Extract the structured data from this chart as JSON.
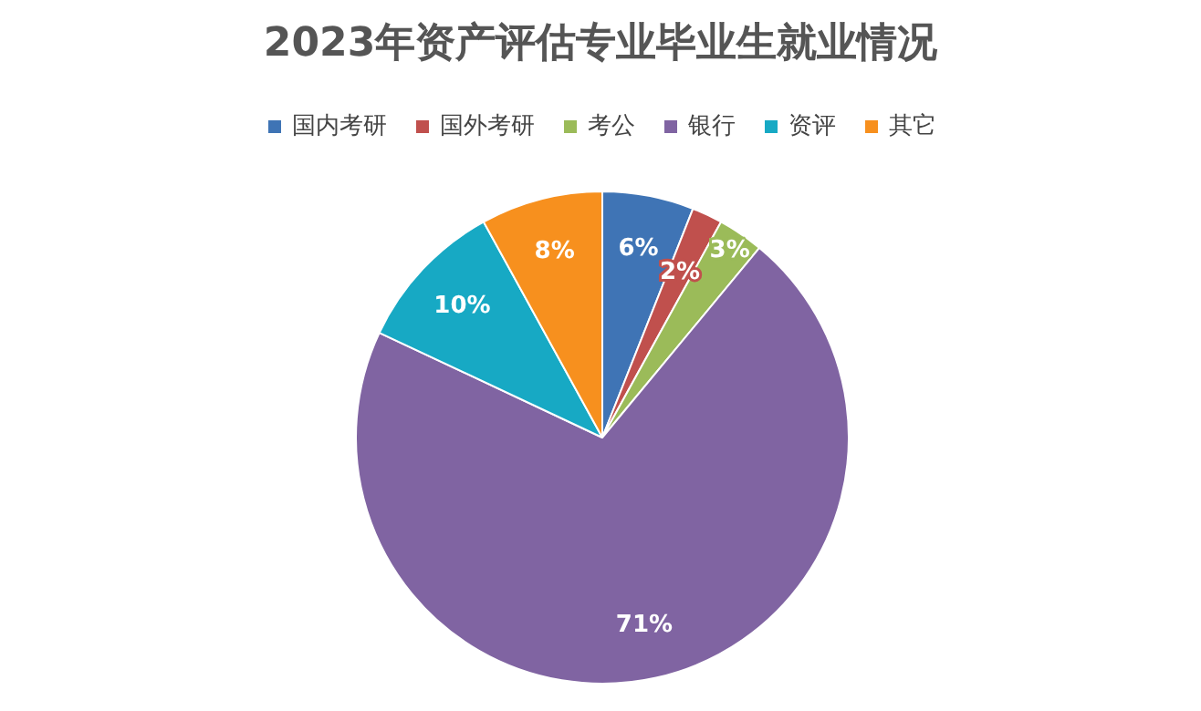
{
  "chart_data": {
    "type": "pie",
    "title": "2023年资产评估专业毕业生就业情况",
    "categories": [
      "国内考研",
      "国外考研",
      "考公",
      "银行",
      "资评",
      "其它"
    ],
    "values": [
      6,
      2,
      3,
      71,
      10,
      8
    ],
    "colors": [
      "#3f74b5",
      "#c0504d",
      "#9bbb59",
      "#8064a2",
      "#17a9c4",
      "#f7901e"
    ],
    "value_labels": [
      "6%",
      "2%",
      "3%",
      "71%",
      "10%",
      "8%"
    ],
    "legend": "top"
  }
}
